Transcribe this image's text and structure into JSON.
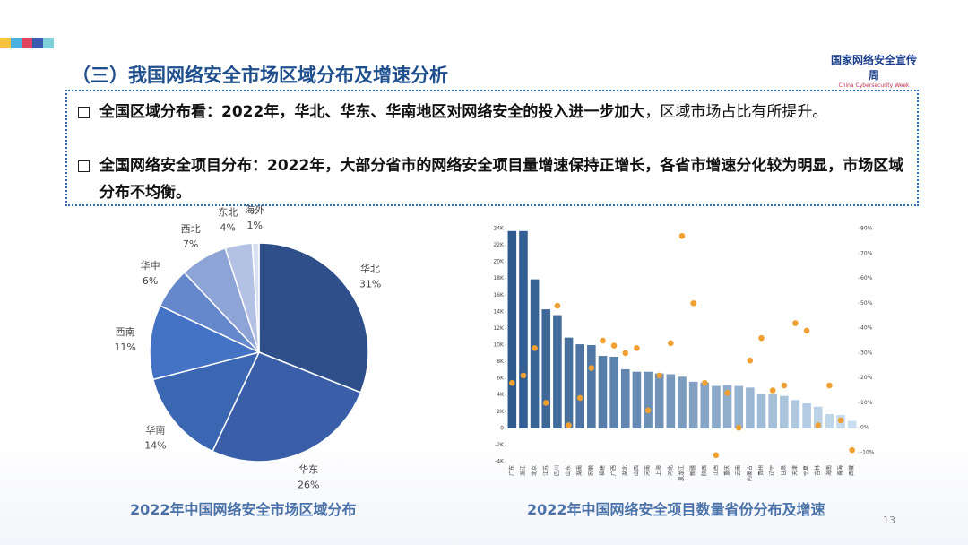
{
  "header": {
    "title": "（三）我国网络安全市场区域分布及增速分析",
    "logo_title": "国家网络安全宣传周",
    "logo_subtitle": "China Cybersecurity Week"
  },
  "bullets": [
    {
      "bold": "全国区域分布看：2022年，华北、华东、华南地区对网络安全的投入进一步加大",
      "text": "，区域市场占比有所提升。"
    },
    {
      "bold": "全国网络安全项目分布：2022年，大部分省市的网络安全项目量增速保持正增长，各省市增速分化较为明显，市场区域分布不均衡。"
    }
  ],
  "chart_data": [
    {
      "type": "pie",
      "title": "2022年中国网络安全市场区域分布",
      "categories": [
        "华北",
        "华东",
        "华南",
        "西南",
        "华中",
        "西北",
        "东北",
        "海外"
      ],
      "values": [
        31,
        26,
        14,
        11,
        6,
        7,
        4,
        1
      ],
      "value_labels": [
        "31%",
        "26%",
        "14%",
        "11%",
        "6%",
        "7%",
        "4%",
        "1%"
      ],
      "colors": [
        "#2f4f8a",
        "#3a5fa8",
        "#3a66b2",
        "#4472c4",
        "#6587cc",
        "#8ea4d6",
        "#b3c1e4",
        "#d8e0f2"
      ]
    },
    {
      "type": "bar_scatter",
      "title": "2022年中国网络安全项目数量省份分布及增速",
      "categories": [
        "广东",
        "浙江",
        "北京",
        "江苏",
        "四川",
        "山东",
        "湖南",
        "安徽",
        "福建",
        "广西",
        "湖北",
        "山西",
        "河南",
        "上海",
        "河北",
        "黑龙江",
        "新疆",
        "陕西",
        "江西",
        "重庆",
        "云南",
        "内蒙古",
        "贵州",
        "辽宁",
        "甘肃",
        "天津",
        "宁夏",
        "吉林",
        "海南",
        "青海",
        "西藏"
      ],
      "series": [
        {
          "type": "bar",
          "colors": [
            "#2e5a8e",
            "#c9def0"
          ],
          "values": [
            23700,
            23700,
            17900,
            14300,
            13600,
            10900,
            10100,
            10000,
            8700,
            8600,
            7100,
            6800,
            6800,
            6600,
            6500,
            6200,
            5600,
            5500,
            5100,
            5200,
            5100,
            4900,
            4100,
            4100,
            3900,
            3400,
            3000,
            2600,
            1700,
            1600,
            900
          ]
        },
        {
          "type": "scatter",
          "axis": "y2",
          "color": "#f0a030",
          "values": [
            18,
            21,
            32,
            10,
            49,
            1,
            12,
            24,
            35,
            33,
            30,
            32,
            7,
            21,
            34,
            77,
            50,
            18,
            -11,
            14,
            0,
            27,
            36,
            15,
            17,
            42,
            39,
            1,
            17,
            3,
            -9
          ]
        }
      ],
      "ylim": [
        -4000,
        24000
      ],
      "yticks": [
        {
          "value": -4000,
          "label": "-4K"
        },
        {
          "value": -2000,
          "label": "-2K"
        },
        0,
        {
          "value": 2000,
          "label": "2K"
        },
        {
          "value": 4000,
          "label": "4K"
        },
        {
          "value": 6000,
          "label": "6K"
        },
        {
          "value": 8000,
          "label": "8K"
        },
        {
          "value": 10000,
          "label": "10K"
        },
        {
          "value": 12000,
          "label": "12K"
        },
        {
          "value": 14000,
          "label": "14K"
        },
        {
          "value": 16000,
          "label": "16K"
        },
        {
          "value": 18000,
          "label": "18K"
        },
        {
          "value": 20000,
          "label": "20K"
        },
        {
          "value": 22000,
          "label": "22K"
        },
        {
          "value": 24000,
          "label": "24K"
        }
      ],
      "y2lim": [
        -10,
        80
      ],
      "y2ticks": [
        {
          "value": -10,
          "label": "-10%"
        },
        {
          "value": 0,
          "label": "0%"
        },
        {
          "value": 10,
          "label": "10%"
        },
        {
          "value": 20,
          "label": "20%"
        },
        {
          "value": 30,
          "label": "30%"
        },
        {
          "value": 40,
          "label": "40%"
        },
        {
          "value": 50,
          "label": "50%"
        },
        {
          "value": 60,
          "label": "60%"
        },
        {
          "value": 70,
          "label": "70%"
        },
        {
          "value": 80,
          "label": "80%"
        }
      ]
    }
  ],
  "page_number": "13"
}
